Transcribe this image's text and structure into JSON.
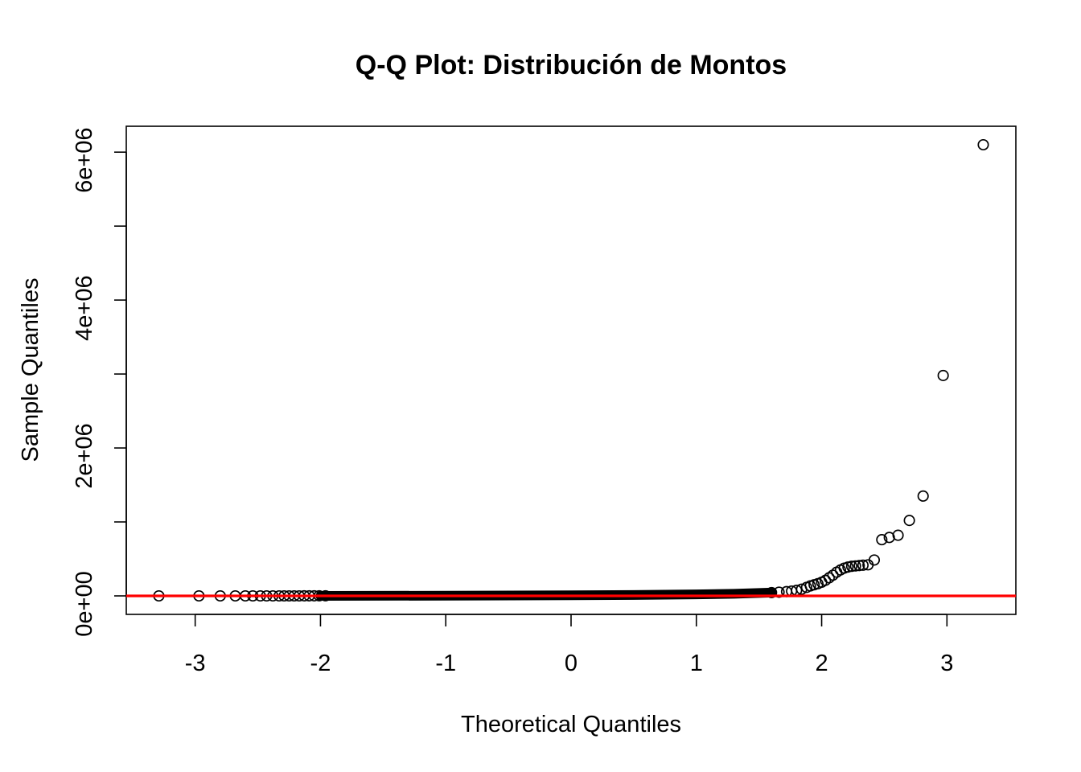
{
  "chart_data": {
    "type": "scatter",
    "title": "Q-Q Plot: Distribución de Montos",
    "xlabel": "Theoretical Quantiles",
    "ylabel": "Sample Quantiles",
    "xlim": [
      -3.55,
      3.55
    ],
    "ylim": [
      -250000,
      6350000
    ],
    "x_ticks": [
      {
        "value": -3,
        "label": "-3"
      },
      {
        "value": -2,
        "label": "-2"
      },
      {
        "value": -1,
        "label": "-1"
      },
      {
        "value": 0,
        "label": "0"
      },
      {
        "value": 1,
        "label": "1"
      },
      {
        "value": 2,
        "label": "2"
      },
      {
        "value": 3,
        "label": "3"
      }
    ],
    "y_ticks": [
      {
        "value": 0,
        "label": "0e+00"
      },
      {
        "value": 1000000,
        "label": ""
      },
      {
        "value": 2000000,
        "label": "2e+06"
      },
      {
        "value": 3000000,
        "label": ""
      },
      {
        "value": 4000000,
        "label": "4e+06"
      },
      {
        "value": 5000000,
        "label": ""
      },
      {
        "value": 6000000,
        "label": "6e+06"
      }
    ],
    "grid": false,
    "reference_line": {
      "color": "#ff0000",
      "intercept": 0,
      "slope": 0
    },
    "point_color": "#000000",
    "points": [
      {
        "x": -3.29,
        "y": 0
      },
      {
        "x": -2.97,
        "y": 0
      },
      {
        "x": -2.8,
        "y": 0
      },
      {
        "x": -2.68,
        "y": 0
      },
      {
        "x": -2.6,
        "y": 0
      },
      {
        "x": -2.54,
        "y": 0
      },
      {
        "x": -2.48,
        "y": 0
      },
      {
        "x": -2.43,
        "y": 0
      },
      {
        "x": -2.38,
        "y": 0
      },
      {
        "x": -2.33,
        "y": 0
      },
      {
        "x": -2.29,
        "y": 0
      },
      {
        "x": -2.25,
        "y": 0
      },
      {
        "x": -2.21,
        "y": 0
      },
      {
        "x": -2.17,
        "y": 0
      },
      {
        "x": -2.13,
        "y": 1000
      },
      {
        "x": -2.09,
        "y": 1000
      },
      {
        "x": -2.05,
        "y": 1000
      },
      {
        "x": -2.01,
        "y": 1500
      },
      {
        "x": -1.96,
        "y": 1500
      },
      {
        "x": 1.6,
        "y": 45000
      },
      {
        "x": 1.66,
        "y": 50000
      },
      {
        "x": 1.72,
        "y": 58000
      },
      {
        "x": 1.76,
        "y": 65000
      },
      {
        "x": 1.8,
        "y": 75000
      },
      {
        "x": 1.84,
        "y": 90000
      },
      {
        "x": 1.88,
        "y": 115000
      },
      {
        "x": 1.91,
        "y": 135000
      },
      {
        "x": 1.94,
        "y": 150000
      },
      {
        "x": 1.97,
        "y": 165000
      },
      {
        "x": 2.0,
        "y": 185000
      },
      {
        "x": 2.03,
        "y": 210000
      },
      {
        "x": 2.06,
        "y": 245000
      },
      {
        "x": 2.09,
        "y": 280000
      },
      {
        "x": 2.12,
        "y": 320000
      },
      {
        "x": 2.15,
        "y": 350000
      },
      {
        "x": 2.18,
        "y": 375000
      },
      {
        "x": 2.21,
        "y": 390000
      },
      {
        "x": 2.24,
        "y": 400000
      },
      {
        "x": 2.27,
        "y": 405000
      },
      {
        "x": 2.3,
        "y": 410000
      },
      {
        "x": 2.33,
        "y": 415000
      },
      {
        "x": 2.37,
        "y": 420000
      },
      {
        "x": 2.42,
        "y": 485000
      },
      {
        "x": 2.48,
        "y": 760000
      },
      {
        "x": 2.54,
        "y": 790000
      },
      {
        "x": 2.61,
        "y": 820000
      },
      {
        "x": 2.7,
        "y": 1020000
      },
      {
        "x": 2.81,
        "y": 1350000
      },
      {
        "x": 2.97,
        "y": 2980000
      },
      {
        "x": 3.29,
        "y": 6100000
      }
    ],
    "dense_band": [
      {
        "x": -2.0,
        "y": 0
      },
      {
        "x": -1.0,
        "y": 3000
      },
      {
        "x": 0.0,
        "y": 8000
      },
      {
        "x": 0.5,
        "y": 12000
      },
      {
        "x": 1.0,
        "y": 20000
      },
      {
        "x": 1.3,
        "y": 28000
      },
      {
        "x": 1.6,
        "y": 45000
      }
    ]
  }
}
